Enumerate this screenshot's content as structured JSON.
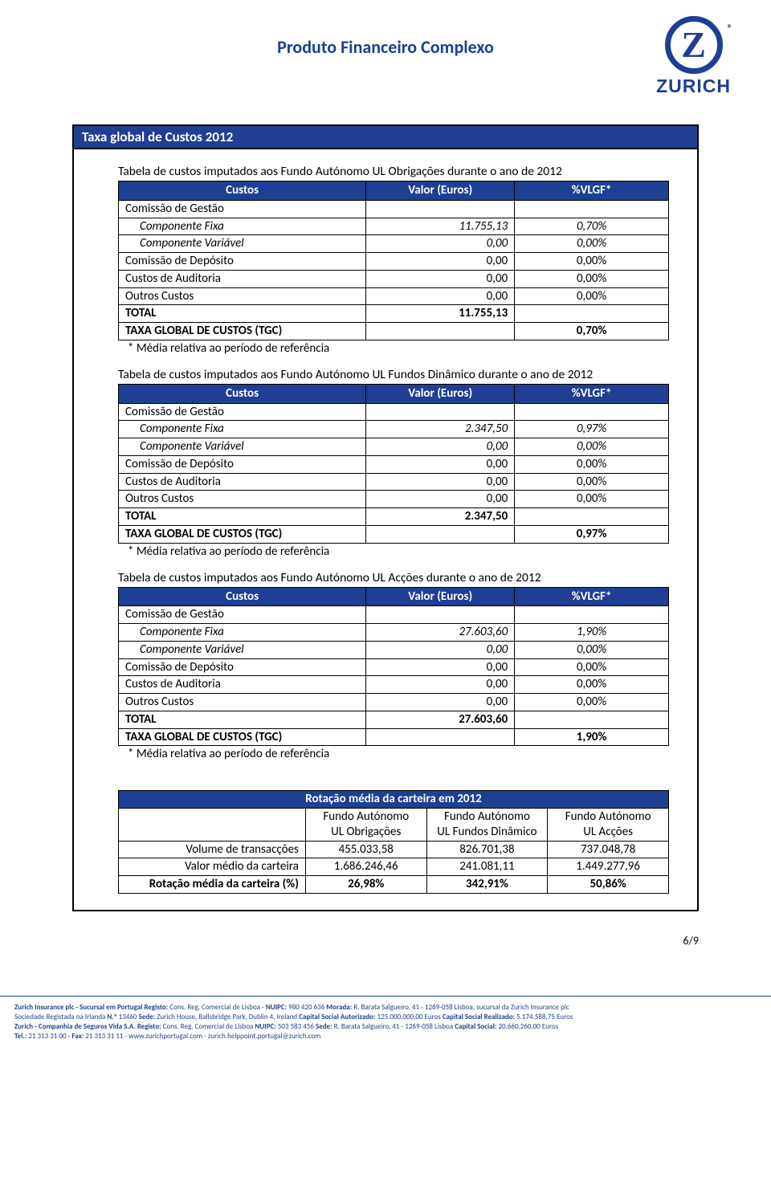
{
  "doc": {
    "title": "Produto Financeiro Complexo",
    "logo_text": "ZURICH",
    "logo_letter": "Z",
    "trademark": "®",
    "page_number": "6/9"
  },
  "section_header": "Taxa global de Custos 2012",
  "col_headers": {
    "c1": "Custos",
    "c2": "Valor (Euros)",
    "c3": "%VLGF*"
  },
  "row_labels": {
    "comissao_gestao": "Comissão de Gestão",
    "comp_fixa": "Componente Fixa",
    "comp_var": "Componente Variável",
    "comissao_deposito": "Comissão de Depósito",
    "custos_auditoria": "Custos de Auditoria",
    "outros_custos": "Outros Custos",
    "total": "TOTAL",
    "tgc": "TAXA GLOBAL DE CUSTOS (TGC)"
  },
  "footnote": "* Média relativa ao período de referência",
  "tables": [
    {
      "caption": "Tabela de custos imputados aos Fundo Autónomo UL Obrigações durante o ano de 2012",
      "comp_fixa": {
        "valor": "11.755,13",
        "pct": "0,70%"
      },
      "comp_var": {
        "valor": "0,00",
        "pct": "0,00%"
      },
      "comissao_deposito": {
        "valor": "0,00",
        "pct": "0,00%"
      },
      "custos_auditoria": {
        "valor": "0,00",
        "pct": "0,00%"
      },
      "outros_custos": {
        "valor": "0,00",
        "pct": "0,00%"
      },
      "total_valor": "11.755,13",
      "tgc_pct": "0,70%"
    },
    {
      "caption": "Tabela de custos imputados aos Fundo Autónomo UL Fundos Dinâmico durante o ano de 2012",
      "comp_fixa": {
        "valor": "2.347,50",
        "pct": "0,97%"
      },
      "comp_var": {
        "valor": "0,00",
        "pct": "0,00%"
      },
      "comissao_deposito": {
        "valor": "0,00",
        "pct": "0,00%"
      },
      "custos_auditoria": {
        "valor": "0,00",
        "pct": "0,00%"
      },
      "outros_custos": {
        "valor": "0,00",
        "pct": "0,00%"
      },
      "total_valor": "2.347,50",
      "tgc_pct": "0,97%"
    },
    {
      "caption": "Tabela de custos imputados aos Fundo Autónomo UL Acções durante o ano de 2012",
      "comp_fixa": {
        "valor": "27.603,60",
        "pct": "1,90%"
      },
      "comp_var": {
        "valor": "0,00",
        "pct": "0,00%"
      },
      "comissao_deposito": {
        "valor": "0,00",
        "pct": "0,00%"
      },
      "custos_auditoria": {
        "valor": "0,00",
        "pct": "0,00%"
      },
      "outros_custos": {
        "valor": "0,00",
        "pct": "0,00%"
      },
      "total_valor": "27.603,60",
      "tgc_pct": "1,90%"
    }
  ],
  "rotation": {
    "title": "Rotação média da carteira em 2012",
    "col_line1": "Fundo Autónomo",
    "cols": [
      "UL Obrigações",
      "UL Fundos Dinâmico",
      "UL Acções"
    ],
    "rows": [
      {
        "label": "Volume de transacções",
        "v": [
          "455.033,58",
          "826.701,38",
          "737.048,78"
        ]
      },
      {
        "label": "Valor médio da carteira",
        "v": [
          "1.686.246,46",
          "241.081,11",
          "1.449.277,96"
        ]
      },
      {
        "label": "Rotação média da carteira (%)",
        "v": [
          "26,98%",
          "342,91%",
          "50,86%"
        ],
        "bold": true
      }
    ]
  },
  "footer": {
    "line1a": "Zurich Insurance plc - Sucursal em Portugal ",
    "line1b": "Registo:",
    "line1c": " Cons. Reg. Comercial de Lisboa - ",
    "line1d": "NUIPC:",
    "line1e": " 980 420 636 ",
    "line1f": "Morada:",
    "line1g": " R. Barata Salgueiro, 41 - 1269-058 Lisboa, sucursal da Zurich Insurance plc",
    "line2a": "Sociedade Registada na Irlanda ",
    "line2b": "N.º",
    "line2c": " 13460 ",
    "line2d": "Sede:",
    "line2e": " Zurich House, Ballsbridge Park, Dublin 4, Ireland ",
    "line2f": "Capital Social Autorizado:",
    "line2g": " 125.000.000,00 Euros ",
    "line2h": "Capital Social Realizado:",
    "line2i": " 5.174.588,75 Euros",
    "line3a": "Zurich - Companhia de Seguros Vida S.A. ",
    "line3b": " Registo:",
    "line3c": " Cons. Reg. Comercial de Lisboa ",
    "line3d": "NUIPC:",
    "line3e": " 503 583 456 ",
    "line3f": "Sede:",
    "line3g": " R. Barata Salgueiro, 41 - 1269-058 Lisboa ",
    "line3h": "Capital Social:",
    "line3i": " 20.660.260,00 Euros",
    "line4a": "Tel.:",
    "line4b": " 21 313 31 00  - ",
    "line4c": "  Fax:",
    "line4d": " 21 313 31 11  -  www.zurichportugal.com  -  zurich.helppoint.portugal@zurich.com"
  }
}
